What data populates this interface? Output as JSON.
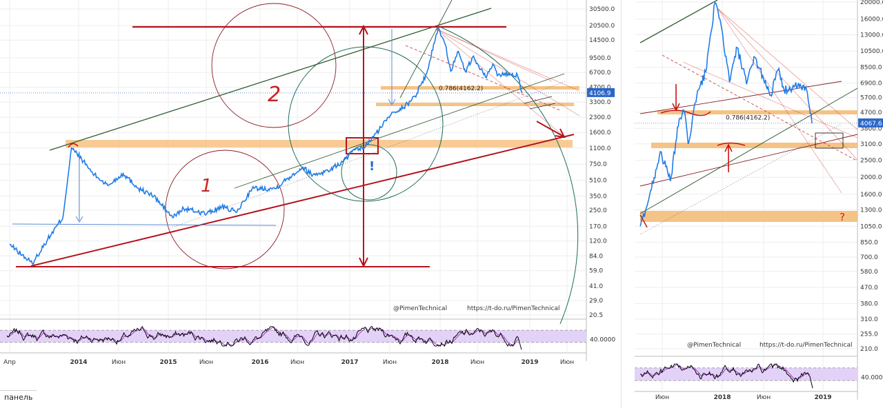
{
  "chart_data": [
    {
      "type": "line",
      "title": "",
      "xlabel": "",
      "ylabel": "",
      "log_scale": true,
      "grid": true,
      "ylim": [
        20.5,
        30500.0
      ],
      "y_ticks": [
        "30500.0",
        "20500.0",
        "14500.0",
        "9500.0",
        "6700.0",
        "4700.0",
        "3300.0",
        "2300.0",
        "1600.0",
        "1100.0",
        "750.0",
        "510.0",
        "350.0",
        "250.0",
        "170.0",
        "120.0",
        "84.0",
        "59.0",
        "41.0",
        "29.0",
        "20.5"
      ],
      "x_ticks": [
        "Апр",
        "2014",
        "Июн",
        "2015",
        "Июн",
        "2016",
        "Июн",
        "2017",
        "Июн",
        "2018",
        "Июн",
        "2019",
        "Июн"
      ],
      "last_price_label": "4106.9",
      "fib_label": "0.786(4162.2)",
      "watermarks": [
        "@PimenTechnical",
        "https://t-do.ru/PimenTechnical"
      ],
      "drawn_annotations": [
        "1",
        "2",
        "!"
      ],
      "series": [
        {
          "color": "#1e7be8",
          "x": [
            "2013-04-01",
            "2013-05-01",
            "2013-07-01",
            "2013-09-01",
            "2013-11-01",
            "2013-12-05",
            "2014-01-15",
            "2014-03-01",
            "2014-05-01",
            "2014-07-01",
            "2014-09-01",
            "2014-11-01",
            "2015-01-15",
            "2015-03-01",
            "2015-06-01",
            "2015-08-01",
            "2015-10-01",
            "2015-12-01",
            "2016-03-01",
            "2016-06-20",
            "2016-08-01",
            "2016-10-01",
            "2016-12-01",
            "2017-01-05",
            "2017-03-01",
            "2017-05-01",
            "2017-06-15",
            "2017-08-01",
            "2017-09-15",
            "2017-11-01",
            "2017-12-17",
            "2018-01-15",
            "2018-02-06",
            "2018-03-05",
            "2018-04-06",
            "2018-05-05",
            "2018-06-29",
            "2018-07-25",
            "2018-08-15",
            "2018-10-01",
            "2018-11-01",
            "2018-11-20"
          ],
          "values": [
            110,
            95,
            70,
            125,
            210,
            1100,
            850,
            600,
            450,
            600,
            420,
            350,
            210,
            260,
            230,
            270,
            240,
            420,
            420,
            700,
            580,
            640,
            800,
            1000,
            1150,
            1800,
            2600,
            2900,
            3800,
            6500,
            19500,
            13000,
            6900,
            11000,
            6800,
            9700,
            5900,
            8200,
            6300,
            6550,
            6300,
            4106.9
          ]
        }
      ],
      "rsi": {
        "level_label": "40.0000",
        "color": "#000000",
        "band_color": "#e3d2f7"
      }
    },
    {
      "type": "line",
      "title": "",
      "xlabel": "",
      "ylabel": "",
      "log_scale": true,
      "grid": true,
      "y_ticks": [
        "20000.0",
        "16000.0",
        "13000.0",
        "10500.0",
        "8500.0",
        "6900.0",
        "5700.0",
        "4700.0",
        "3800.0",
        "3100.0",
        "2500.0",
        "2000.0",
        "1600.0",
        "1300.0",
        "1050.0",
        "850.0",
        "700.0",
        "580.0",
        "470.0",
        "380.0",
        "310.0",
        "255.0",
        "210.0"
      ],
      "x_ticks": [
        "Июн",
        "2018",
        "Июн",
        "2019"
      ],
      "last_price_label": "4067.6",
      "fib_label": "0.786(4162.2)",
      "watermarks": [
        "@PimenTechnical",
        "https://t-do.ru/PimenTechnical"
      ],
      "drawn_annotations": [
        "?"
      ],
      "series": [
        {
          "color": "#1e7be8",
          "x": [
            "2017-04-01",
            "2017-05-01",
            "2017-06-10",
            "2017-07-15",
            "2017-08-15",
            "2017-09-01",
            "2017-09-15",
            "2017-10-15",
            "2017-11-15",
            "2017-12-17",
            "2018-01-10",
            "2018-02-06",
            "2018-03-05",
            "2018-04-06",
            "2018-05-05",
            "2018-06-29",
            "2018-07-25",
            "2018-08-15",
            "2018-10-01",
            "2018-11-01",
            "2018-11-20"
          ],
          "values": [
            1050,
            1500,
            2800,
            1900,
            4300,
            4800,
            3100,
            5800,
            8000,
            19800,
            14000,
            7000,
            11000,
            6800,
            9700,
            5900,
            8200,
            6300,
            6600,
            6350,
            4067.6
          ]
        }
      ],
      "rsi": {
        "level_label": "40.0000",
        "color": "#000000",
        "band_color": "#e3d2f7"
      }
    }
  ],
  "ui": {
    "panel_tab_label": "панель",
    "colors": {
      "price": "#1e7be8",
      "resistance": "#b5121b",
      "trend_green": "#2f5d2f",
      "zone": "#f5b971",
      "circle_red": "#8a1a22",
      "circle_teal": "#1e6b5a",
      "fib_line": "#cc2a2a",
      "guide": "#5a8bd6"
    }
  }
}
